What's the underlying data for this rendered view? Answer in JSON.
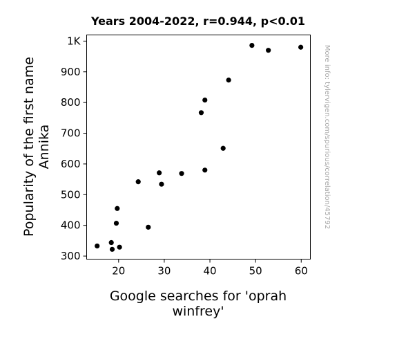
{
  "chart_data": {
    "type": "scatter",
    "title": "Years 2004-2022, r=0.944, p<0.01",
    "xlabel_lines": [
      "Google searches for 'oprah",
      "winfrey'"
    ],
    "ylabel_lines": [
      "Popularity of the first name",
      "Annika"
    ],
    "side_note": "More info: tylervigen.com/spurious/correlation/45792",
    "xlim": [
      13,
      62
    ],
    "ylim": [
      290,
      1020
    ],
    "x_ticks": [
      {
        "value": 20,
        "label": "20"
      },
      {
        "value": 30,
        "label": "30"
      },
      {
        "value": 40,
        "label": "40"
      },
      {
        "value": 50,
        "label": "50"
      },
      {
        "value": 60,
        "label": "60"
      }
    ],
    "y_ticks": [
      {
        "value": 300,
        "label": "300"
      },
      {
        "value": 400,
        "label": "400"
      },
      {
        "value": 500,
        "label": "500"
      },
      {
        "value": 600,
        "label": "600"
      },
      {
        "value": 700,
        "label": "700"
      },
      {
        "value": 800,
        "label": "800"
      },
      {
        "value": 900,
        "label": "900"
      },
      {
        "value": 1000,
        "label": "1K"
      }
    ],
    "grid": false,
    "legend": "none",
    "points": [
      {
        "x": 15.3,
        "y": 333
      },
      {
        "x": 18.4,
        "y": 344
      },
      {
        "x": 18.6,
        "y": 322
      },
      {
        "x": 19.5,
        "y": 407
      },
      {
        "x": 19.7,
        "y": 455
      },
      {
        "x": 20.2,
        "y": 329
      },
      {
        "x": 24.3,
        "y": 542
      },
      {
        "x": 26.5,
        "y": 394
      },
      {
        "x": 28.9,
        "y": 571
      },
      {
        "x": 29.4,
        "y": 534
      },
      {
        "x": 33.8,
        "y": 569
      },
      {
        "x": 38.1,
        "y": 767
      },
      {
        "x": 38.9,
        "y": 808
      },
      {
        "x": 38.9,
        "y": 580
      },
      {
        "x": 42.9,
        "y": 651
      },
      {
        "x": 44.1,
        "y": 873
      },
      {
        "x": 49.2,
        "y": 986
      },
      {
        "x": 52.8,
        "y": 970
      },
      {
        "x": 59.9,
        "y": 980
      }
    ]
  }
}
